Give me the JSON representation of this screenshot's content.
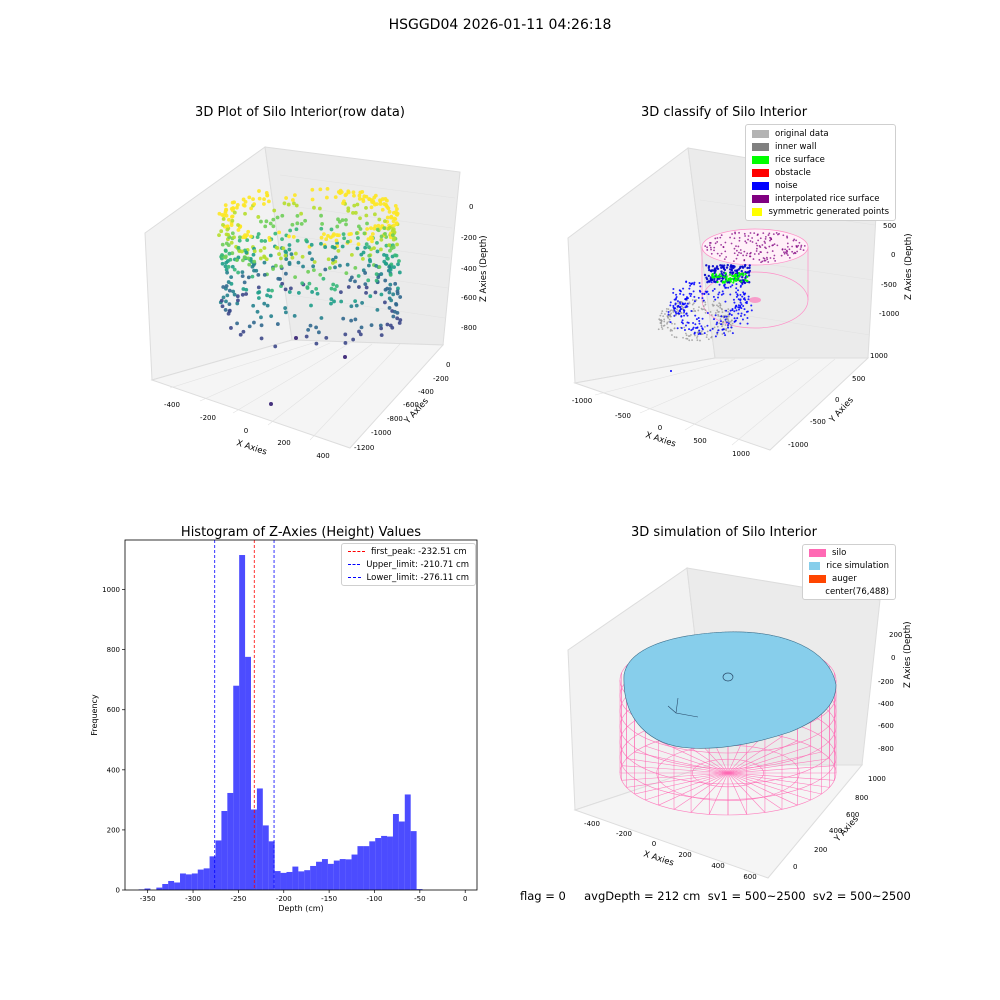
{
  "page": {
    "title": "HSGGD04 2026-01-11 04:26:18"
  },
  "panel1": {
    "title": "3D Plot of Silo Interior(row data)",
    "xlabel": "X Axies",
    "ylabel": "Y Axies",
    "zlabel": "Z Axies (Depth)",
    "x_ticks": [
      "-400",
      "-200",
      "0",
      "200",
      "400"
    ],
    "y_ticks": [
      "0",
      "-200",
      "-400",
      "-600",
      "-800",
      "-1000",
      "-1200"
    ],
    "z_ticks": [
      "0",
      "-200",
      "-400",
      "-600",
      "-800"
    ]
  },
  "panel2": {
    "title": "3D classify of Silo Interior",
    "xlabel": "X Axies",
    "ylabel": "Y Axies",
    "zlabel": "Z Axies (Depth)",
    "x_ticks": [
      "-1000",
      "-500",
      "0",
      "500",
      "1000"
    ],
    "y_ticks": [
      "1000",
      "500",
      "0",
      "-500",
      "-1000"
    ],
    "z_ticks": [
      "500",
      "0",
      "-500",
      "-1000"
    ],
    "legend": [
      {
        "label": "original data",
        "color": "#b3b3b3"
      },
      {
        "label": "inner wall",
        "color": "#808080"
      },
      {
        "label": "rice surface",
        "color": "#00ff00"
      },
      {
        "label": "obstacle",
        "color": "#ff0000"
      },
      {
        "label": "noise",
        "color": "#0000ff"
      },
      {
        "label": "interpolated rice surface",
        "color": "#800080"
      },
      {
        "label": "symmetric generated points",
        "color": "#ffff00"
      }
    ]
  },
  "panel4": {
    "title": "3D simulation of Silo Interior",
    "xlabel": "X Axies",
    "ylabel": "Y Axies",
    "zlabel": "Z Axies (Depth)",
    "x_ticks": [
      "-400",
      "-200",
      "0",
      "200",
      "400",
      "600"
    ],
    "y_ticks": [
      "0",
      "200",
      "400",
      "600",
      "800",
      "1000"
    ],
    "z_ticks": [
      "200",
      "0",
      "-200",
      "-400",
      "-600",
      "-800"
    ],
    "legend": [
      {
        "label": "silo",
        "color": "#ff69b4"
      },
      {
        "label": "rice simulation",
        "color": "#87ceeb"
      },
      {
        "label": "auger",
        "color": "#ff4500"
      },
      {
        "label": "center(76,488)",
        "color": ""
      }
    ]
  },
  "status": {
    "text": "flag = 0     avgDepth = 212 cm  sv1 = 500~2500  sv2 = 500~2500"
  },
  "chart_data": [
    {
      "type": "histogram",
      "title": "Histogram of Z-Axies (Height) Values",
      "xlabel": "Depth (cm)",
      "ylabel": "Frequency",
      "xlim": [
        -375,
        13
      ],
      "ylim": [
        0,
        1165
      ],
      "x_ticks": [
        -350,
        -300,
        -250,
        -200,
        -150,
        -100,
        -50,
        0
      ],
      "y_ticks": [
        0,
        200,
        400,
        600,
        800,
        1000
      ],
      "bar_color": "#0000ff",
      "bins": {
        "start": -360,
        "width": 6.52,
        "values": [
          2,
          5,
          0,
          8,
          20,
          30,
          25,
          55,
          52,
          55,
          68,
          72,
          112,
          165,
          263,
          323,
          680,
          1115,
          776,
          268,
          338,
          215,
          162,
          63,
          57,
          60,
          78,
          62,
          66,
          80,
          94,
          103,
          87,
          98,
          103,
          102,
          118,
          146,
          146,
          162,
          173,
          180,
          178,
          253,
          228,
          318,
          196,
          3
        ]
      },
      "reference_lines": [
        {
          "name": "first_peak: -232.51 cm",
          "x": -232.51,
          "color": "#ff0000"
        },
        {
          "name": "Upper_limit: -210.71 cm",
          "x": -210.71,
          "color": "#0000ff"
        },
        {
          "name": "Lower_limit: -276.11 cm",
          "x": -276.11,
          "color": "#0000ff"
        }
      ]
    }
  ]
}
